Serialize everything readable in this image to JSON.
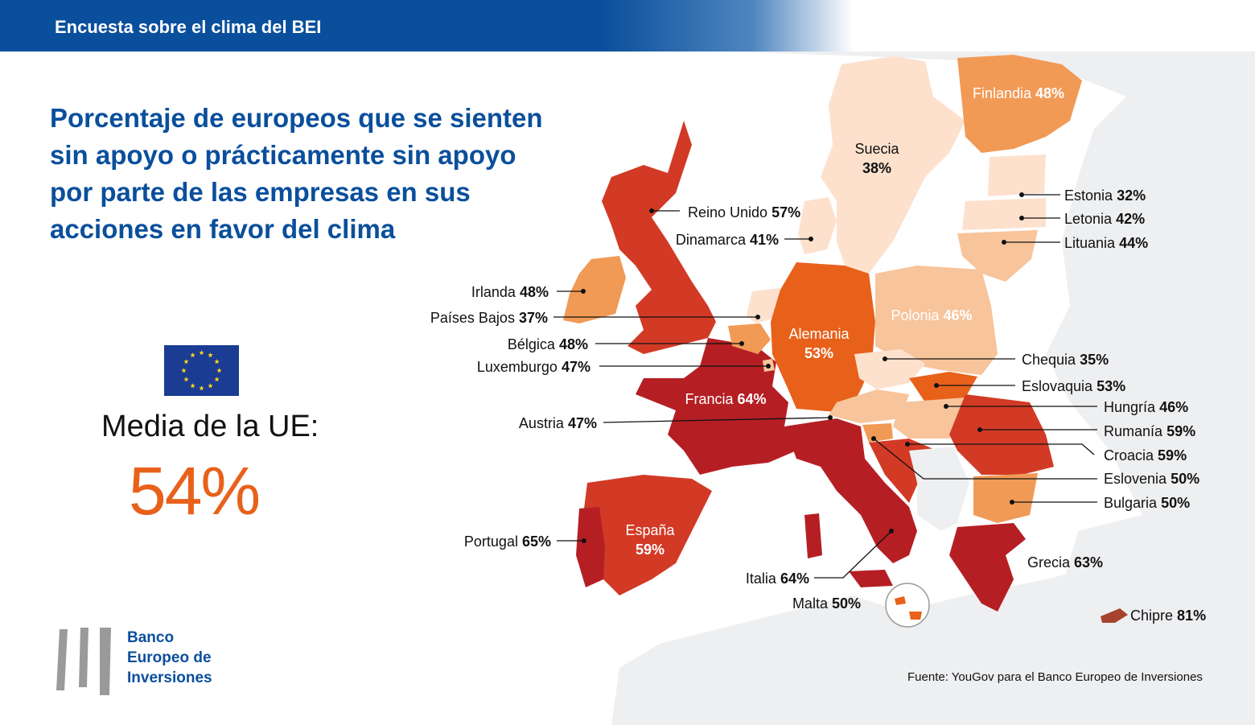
{
  "header": {
    "title": "Encuesta sobre el clima del BEI"
  },
  "headline": "Porcentaje de europeos que se sienten sin apoyo o prácticamente sin apoyo por parte de las empresas en sus acciones en favor del clima",
  "eu_average": {
    "label": "Media de la UE:",
    "value": "54%"
  },
  "logo": {
    "lines": [
      "Banco",
      "Europeo de",
      "Inversiones"
    ]
  },
  "source": "Fuente: YouGov para el Banco Europeo de Inversiones",
  "colors": {
    "brand_blue": "#0a4f9c",
    "accent_orange": "#e8611a",
    "scale_darkest": "#b51f24",
    "scale_dark": "#d23a26",
    "scale_mid": "#e8611a",
    "scale_light": "#f19a56",
    "scale_pale": "#f7c49b",
    "scale_palest": "#fde1cd",
    "background_land": "#eeeff1"
  },
  "countries": [
    {
      "name": "Reino Unido",
      "value": 57,
      "label": "57%"
    },
    {
      "name": "Dinamarca",
      "value": 41,
      "label": "41%"
    },
    {
      "name": "Irlanda",
      "value": 48,
      "label": "48%"
    },
    {
      "name": "Países Bajos",
      "value": 37,
      "label": "37%"
    },
    {
      "name": "Bélgica",
      "value": 48,
      "label": "48%"
    },
    {
      "name": "Luxemburgo",
      "value": 47,
      "label": "47%"
    },
    {
      "name": "Austria",
      "value": 47,
      "label": "47%"
    },
    {
      "name": "Portugal",
      "value": 65,
      "label": "65%"
    },
    {
      "name": "Italia",
      "value": 64,
      "label": "64%"
    },
    {
      "name": "Malta",
      "value": 50,
      "label": "50%"
    },
    {
      "name": "Finlandia",
      "value": 48,
      "label": "48%"
    },
    {
      "name": "Suecia",
      "value": 38,
      "label": "38%"
    },
    {
      "name": "Estonia",
      "value": 32,
      "label": "32%"
    },
    {
      "name": "Letonia",
      "value": 42,
      "label": "42%"
    },
    {
      "name": "Lituania",
      "value": 44,
      "label": "44%"
    },
    {
      "name": "Polonia",
      "value": 46,
      "label": "46%"
    },
    {
      "name": "Alemania",
      "value": 53,
      "label": "53%"
    },
    {
      "name": "Francia",
      "value": 64,
      "label": "64%"
    },
    {
      "name": "España",
      "value": 59,
      "label": "59%"
    },
    {
      "name": "Chequia",
      "value": 35,
      "label": "35%"
    },
    {
      "name": "Eslovaquia",
      "value": 53,
      "label": "53%"
    },
    {
      "name": "Hungría",
      "value": 46,
      "label": "46%"
    },
    {
      "name": "Rumanía",
      "value": 59,
      "label": "59%"
    },
    {
      "name": "Croacia",
      "value": 59,
      "label": "59%"
    },
    {
      "name": "Eslovenia",
      "value": 50,
      "label": "50%"
    },
    {
      "name": "Bulgaria",
      "value": 50,
      "label": "50%"
    },
    {
      "name": "Grecia",
      "value": 63,
      "label": "63%"
    },
    {
      "name": "Chipre",
      "value": 81,
      "label": "81%"
    }
  ]
}
